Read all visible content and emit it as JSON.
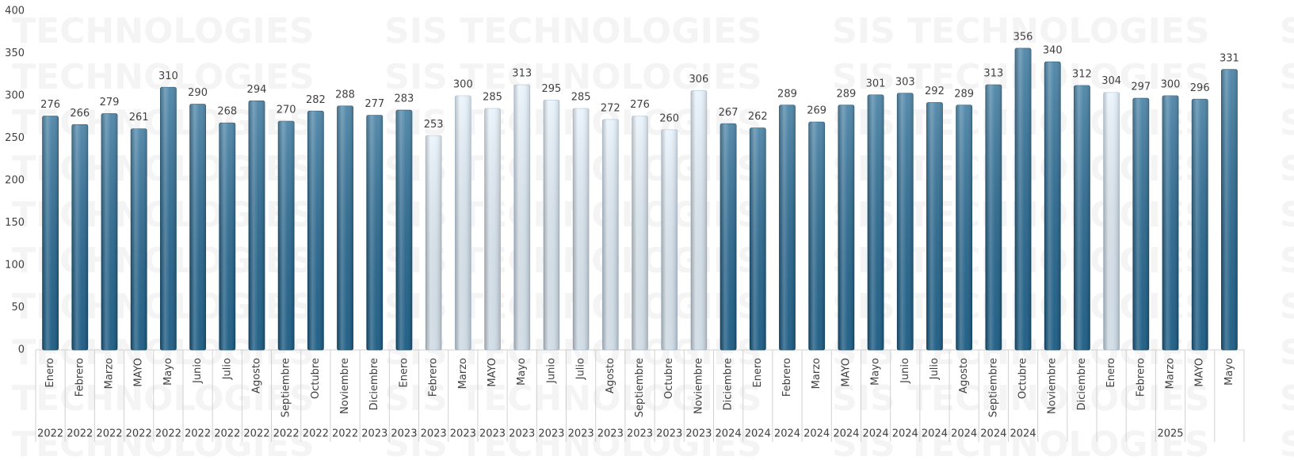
{
  "chart_data": {
    "type": "bar",
    "watermark": "SIS TECHNOLOGIES",
    "categories": [
      "Enero",
      "Febrero",
      "Marzo",
      "MAYO",
      "Mayo",
      "Junio",
      "Julio",
      "Agosto",
      "Septiembre",
      "Octubre",
      "Noviembre",
      "Diciembre",
      "Enero",
      "Febrero",
      "Marzo",
      "MAYO",
      "Mayo",
      "Junio",
      "Julio",
      "Agosto",
      "Septiembre",
      "Octubre",
      "Noviembre",
      "Diciembre",
      "Enero",
      "Febrero",
      "Marzo",
      "MAYO",
      "Mayo",
      "Junio",
      "Julio",
      "Agosto",
      "Septiembre",
      "Octubre",
      "Noviembre",
      "Diciembre",
      "Enero",
      "Febrero",
      "Marzo",
      "MAYO",
      "Mayo"
    ],
    "years": [
      "2022",
      "2022",
      "2022",
      "2022",
      "2022",
      "2022",
      "2022",
      "2022",
      "2022",
      "2022",
      "2022",
      "2023",
      "2023",
      "2023",
      "2023",
      "2023",
      "2023",
      "2023",
      "2023",
      "2023",
      "2023",
      "2023",
      "2023",
      "2024",
      "2024",
      "2024",
      "2024",
      "2024",
      "2024",
      "2024",
      "2024",
      "2024",
      "2024",
      "2024",
      null,
      null,
      null,
      null,
      "2025",
      null,
      null
    ],
    "values": [
      276,
      266,
      279,
      261,
      310,
      290,
      268,
      294,
      270,
      282,
      288,
      277,
      283,
      253,
      300,
      285,
      313,
      295,
      285,
      272,
      276,
      260,
      306,
      267,
      262,
      289,
      269,
      289,
      301,
      303,
      292,
      289,
      313,
      356,
      340,
      312,
      304,
      297,
      300,
      296,
      331
    ],
    "colors": [
      "#1d6490",
      "#1d6490",
      "#1d6490",
      "#1d6490",
      "#1d6490",
      "#1d6490",
      "#1d6490",
      "#1d6490",
      "#1d6490",
      "#1d6490",
      "#1d6490",
      "#1d6490",
      "#1d6490",
      "#e2effa",
      "#e2effa",
      "#e2effa",
      "#e2effa",
      "#e2effa",
      "#e2effa",
      "#e2effa",
      "#e2effa",
      "#e2effa",
      "#e2effa",
      "#1d6490",
      "#1d6490",
      "#1d6490",
      "#1d6490",
      "#1d6490",
      "#1d6490",
      "#1d6490",
      "#1d6490",
      "#1d6490",
      "#1d6490",
      "#1d6490",
      "#1d6490",
      "#1d6490",
      "#e2effa",
      "#1d6490",
      "#1d6490",
      "#1d6490",
      "#1d6490"
    ],
    "ylim": [
      0,
      400
    ],
    "yticks": [
      0,
      50,
      100,
      150,
      200,
      250,
      300,
      350,
      400
    ],
    "grid": false
  }
}
